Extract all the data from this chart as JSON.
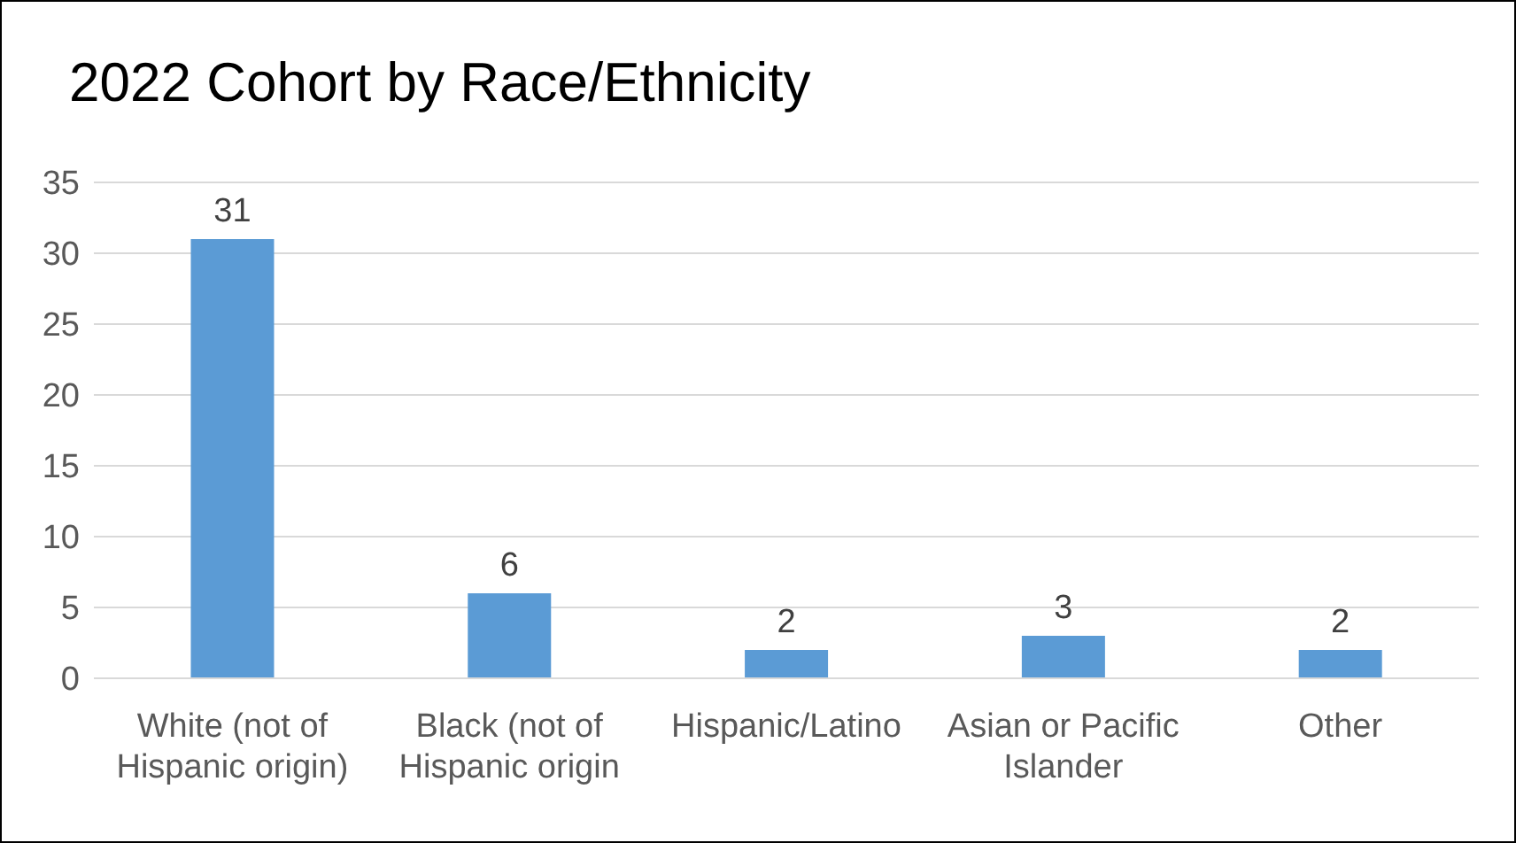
{
  "chart_data": {
    "type": "bar",
    "title": "2022 Cohort by Race/Ethnicity",
    "categories": [
      "White (not of Hispanic origin)",
      "Black (not of Hispanic origin",
      "Hispanic/Latino",
      "Asian or Pacific Islander",
      "Other"
    ],
    "values": [
      31,
      6,
      2,
      3,
      2
    ],
    "color": "#5b9bd5",
    "ylim": [
      0,
      35
    ],
    "yticks": [
      0,
      5,
      10,
      15,
      20,
      25,
      30,
      35
    ],
    "grid": "y",
    "data_labels": true
  }
}
